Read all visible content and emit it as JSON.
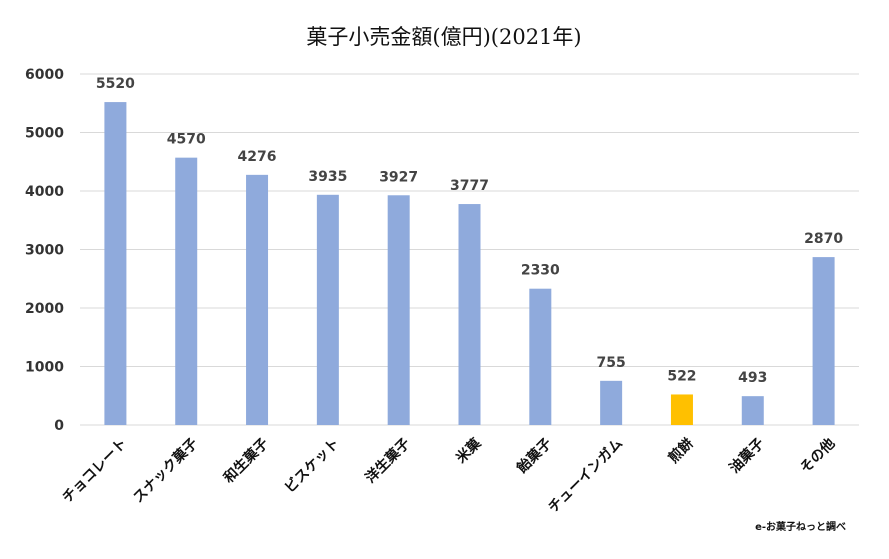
{
  "chart_data": {
    "type": "bar",
    "title": "菓子小売金額(億円)(2021年)",
    "xlabel": "",
    "ylabel": "",
    "ylim": [
      0,
      6000
    ],
    "yticks": [
      0,
      1000,
      2000,
      3000,
      4000,
      5000,
      6000
    ],
    "categories": [
      "チョコレート",
      "スナック菓子",
      "和生菓子",
      "ビスケット",
      "洋生菓子",
      "米菓",
      "飴菓子",
      "チューインガム",
      "煎餅",
      "油菓子",
      "その他"
    ],
    "values": [
      5520,
      4570,
      4276,
      3935,
      3927,
      3777,
      2330,
      755,
      522,
      493,
      2870
    ],
    "bar_colors": [
      "#8faadc",
      "#8faadc",
      "#8faadc",
      "#8faadc",
      "#8faadc",
      "#8faadc",
      "#8faadc",
      "#8faadc",
      "#ffc000",
      "#8faadc",
      "#8faadc"
    ],
    "grid": true,
    "legend": "none",
    "source_note": "e-お菓子ねっと調べ"
  }
}
